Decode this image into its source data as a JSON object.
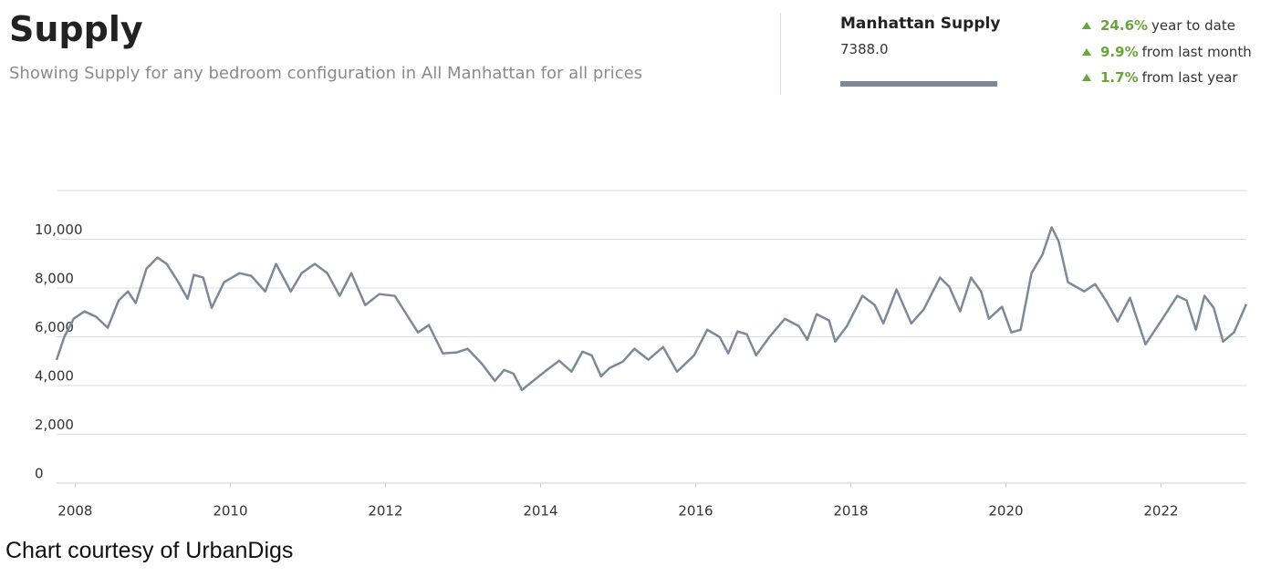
{
  "chart_data": {
    "type": "line",
    "title": "Supply",
    "subtitle": "Showing Supply for any bedroom configuration in All Manhattan for all prices",
    "x": [
      2007.76,
      2007.86,
      2007.98,
      2008.12,
      2008.27,
      2008.42,
      2008.56,
      2008.68,
      2008.78,
      2008.92,
      2009.06,
      2009.18,
      2009.33,
      2009.45,
      2009.53,
      2009.65,
      2009.76,
      2009.92,
      2010.12,
      2010.27,
      2010.45,
      2010.59,
      2010.78,
      2010.92,
      2011.09,
      2011.25,
      2011.41,
      2011.56,
      2011.74,
      2011.92,
      2012.12,
      2012.27,
      2012.42,
      2012.56,
      2012.74,
      2012.92,
      2013.06,
      2013.25,
      2013.41,
      2013.53,
      2013.65,
      2013.76,
      2013.92,
      2014.07,
      2014.24,
      2014.4,
      2014.54,
      2014.66,
      2014.78,
      2014.89,
      2015.06,
      2015.21,
      2015.39,
      2015.58,
      2015.76,
      2015.98,
      2016.15,
      2016.31,
      2016.42,
      2016.54,
      2016.66,
      2016.78,
      2016.95,
      2017.15,
      2017.33,
      2017.44,
      2017.56,
      2017.72,
      2017.8,
      2017.95,
      2018.15,
      2018.31,
      2018.42,
      2018.59,
      2018.78,
      2018.94,
      2019.15,
      2019.27,
      2019.41,
      2019.55,
      2019.68,
      2019.78,
      2019.95,
      2020.07,
      2020.19,
      2020.33,
      2020.47,
      2020.59,
      2020.68,
      2020.8,
      2021.01,
      2021.15,
      2021.29,
      2021.44,
      2021.6,
      2021.8,
      2021.98,
      2022.21,
      2022.33,
      2022.45,
      2022.56,
      2022.68,
      2022.8,
      2022.94,
      2023.1
    ],
    "series": [
      {
        "name": "Manhattan Supply",
        "color": "#7b8998",
        "values": [
          5050,
          6000,
          6740,
          7040,
          6820,
          6370,
          7490,
          7860,
          7380,
          8800,
          9250,
          8990,
          8240,
          7560,
          8540,
          8430,
          7190,
          8240,
          8610,
          8500,
          7860,
          8990,
          7860,
          8610,
          8990,
          8610,
          7680,
          8610,
          7300,
          7750,
          7680,
          6930,
          6180,
          6480,
          5320,
          5360,
          5510,
          4870,
          4190,
          4640,
          4490,
          3820,
          4230,
          4610,
          5020,
          4570,
          5390,
          5240,
          4380,
          4720,
          4980,
          5510,
          5060,
          5580,
          4570,
          5240,
          6290,
          5990,
          5320,
          6220,
          6100,
          5240,
          5990,
          6740,
          6440,
          5880,
          6930,
          6670,
          5800,
          6440,
          7680,
          7300,
          6550,
          7940,
          6550,
          7120,
          8430,
          8050,
          7040,
          8430,
          7860,
          6740,
          7230,
          6180,
          6290,
          8610,
          9360,
          10490,
          9920,
          8240,
          7860,
          8160,
          7490,
          6630,
          7600,
          5690,
          6550,
          7680,
          7490,
          6290,
          7680,
          7190,
          5800,
          6180,
          7340
        ]
      }
    ],
    "xlim": [
      2007.76,
      2023.1
    ],
    "xticks": [
      2008,
      2010,
      2012,
      2014,
      2016,
      2018,
      2020,
      2022
    ],
    "ylim": [
      0,
      12000
    ],
    "yticks": [
      0,
      {
        "value": 2000,
        "label": "2,000"
      },
      {
        "value": 4000,
        "label": "4,000"
      },
      {
        "value": 6000,
        "label": "6,000"
      },
      {
        "value": 8000,
        "label": "8,000"
      },
      {
        "value": 10000,
        "label": "10,000"
      }
    ],
    "grid": true
  },
  "summary": {
    "latest": "7388.0",
    "changes": [
      {
        "value": "24.6%",
        "text": "year to date"
      },
      {
        "value": "9.9%",
        "text": "from last month"
      },
      {
        "value": "1.7%",
        "text": "from last year"
      }
    ]
  },
  "caption": "Chart courtesy of UrbanDigs"
}
